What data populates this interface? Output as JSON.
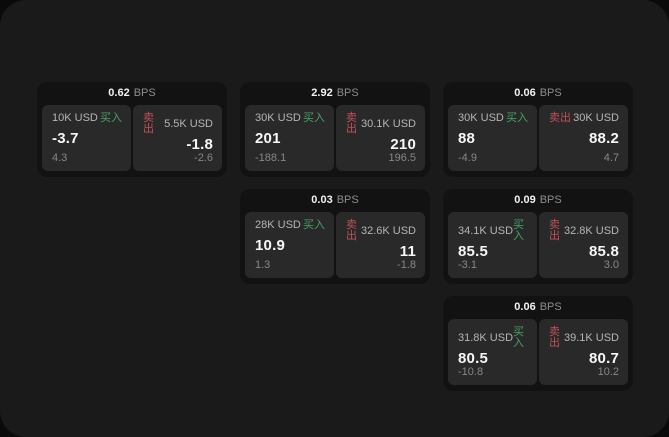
{
  "labels": {
    "buy": "买入",
    "sell": "卖出",
    "bps": "BPS"
  },
  "colors": {
    "buy-green": "#45a365",
    "sell-red": "#c05058",
    "surface": "#1a1a1b",
    "card-bg": "#121213",
    "panel-bg": "#29292a"
  },
  "cards": [
    {
      "row": 1,
      "col": 1,
      "bps": "0.62",
      "buy": {
        "amount": "10K USD",
        "value": "-3.7",
        "sub": "4.3"
      },
      "sell": {
        "amount": "5.5K USD",
        "value": "-1.8",
        "sub": "-2.6"
      }
    },
    {
      "row": 1,
      "col": 2,
      "bps": "2.92",
      "buy": {
        "amount": "30K USD",
        "value": "201",
        "sub": "-188.1"
      },
      "sell": {
        "amount": "30.1K USD",
        "value": "210",
        "sub": "196.5"
      }
    },
    {
      "row": 1,
      "col": 3,
      "bps": "0.06",
      "buy": {
        "amount": "30K USD",
        "value": "88",
        "sub": "-4.9"
      },
      "sell": {
        "amount": "30K USD",
        "value": "88.2",
        "sub": "4.7"
      }
    },
    {
      "row": 2,
      "col": 2,
      "bps": "0.03",
      "buy": {
        "amount": "28K USD",
        "value": "10.9",
        "sub": "1.3"
      },
      "sell": {
        "amount": "32.6K USD",
        "value": "11",
        "sub": "-1.8"
      }
    },
    {
      "row": 2,
      "col": 3,
      "bps": "0.09",
      "buy": {
        "amount": "34.1K USD",
        "value": "85.5",
        "sub": "-3.1"
      },
      "sell": {
        "amount": "32.8K USD",
        "value": "85.8",
        "sub": "3.0"
      }
    },
    {
      "row": 3,
      "col": 3,
      "bps": "0.06",
      "buy": {
        "amount": "31.8K USD",
        "value": "80.5",
        "sub": "-10.8"
      },
      "sell": {
        "amount": "39.1K USD",
        "value": "80.7",
        "sub": "10.2"
      }
    }
  ]
}
